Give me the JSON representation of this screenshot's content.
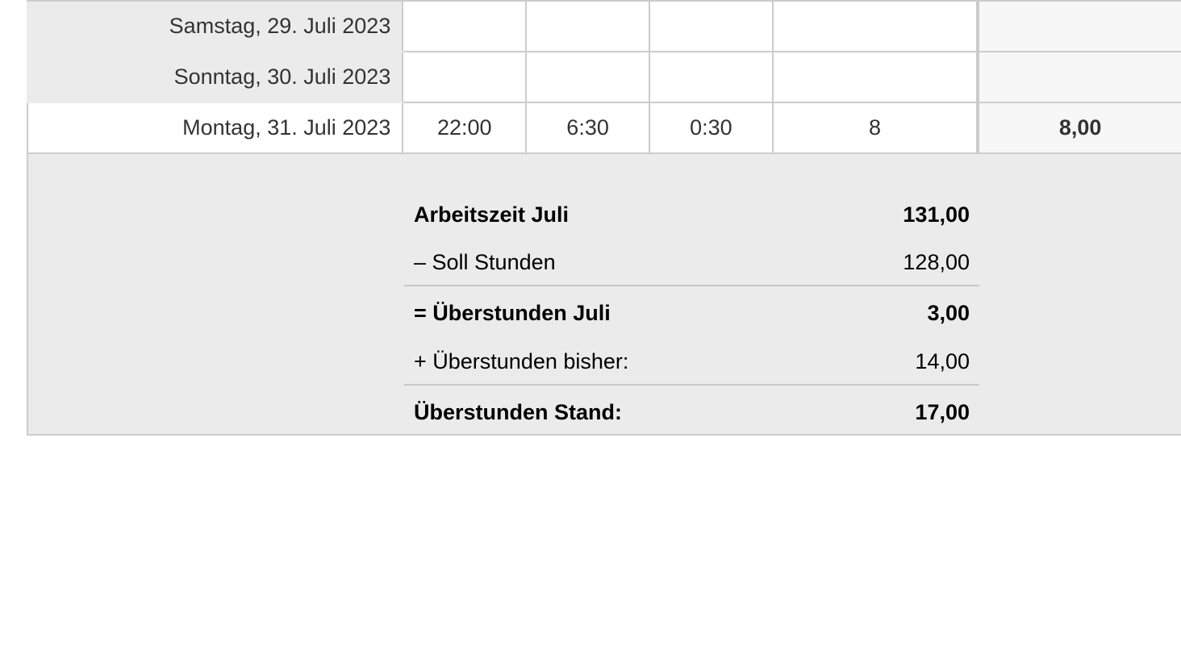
{
  "days": [
    {
      "date": "Samstag, 29. Juli 2023",
      "start": "",
      "end": "",
      "pause": "",
      "hours": "",
      "total": "",
      "weekend": true
    },
    {
      "date": "Sonntag, 30. Juli 2023",
      "start": "",
      "end": "",
      "pause": "",
      "hours": "",
      "total": "",
      "weekend": true
    },
    {
      "date": "Montag, 31. Juli 2023",
      "start": "22:00",
      "end": "6:30",
      "pause": "0:30",
      "hours": "8",
      "total": "8,00",
      "weekend": false
    }
  ],
  "summary": {
    "worked_label": "Arbeitszeit Juli",
    "worked_value": "131,00",
    "target_label": "– Soll Stunden",
    "target_value": "128,00",
    "overtime_month_label": "= Überstunden Juli",
    "overtime_month_value": "3,00",
    "overtime_prev_label": "+ Überstunden bisher:",
    "overtime_prev_value": "14,00",
    "overtime_total_label": "Überstunden Stand:",
    "overtime_total_value": "17,00"
  }
}
